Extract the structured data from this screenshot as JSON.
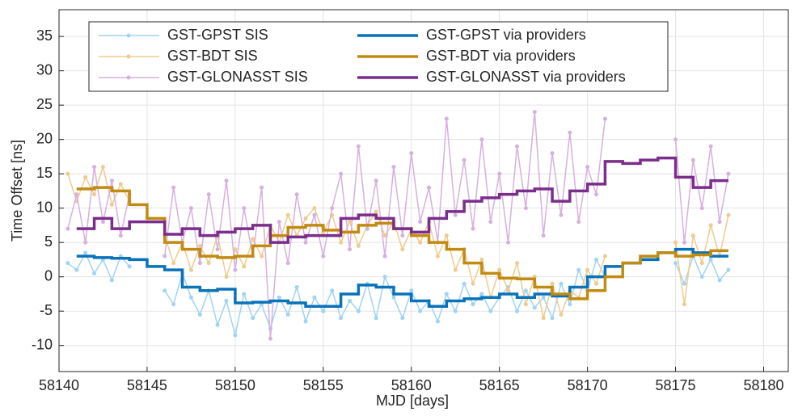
{
  "chart_data": {
    "type": "line",
    "xlabel": "MJD [days]",
    "ylabel": "Time Offset [ns]",
    "xlim": [
      58140,
      58181.4
    ],
    "ylim": [
      -13.8,
      38.9
    ],
    "xticks": [
      58140,
      58145,
      58150,
      58155,
      58160,
      58165,
      58170,
      58175,
      58180
    ],
    "yticks": [
      -10,
      -5,
      0,
      5,
      10,
      15,
      20,
      25,
      30,
      35
    ],
    "grid": true,
    "legend_location": "northwest",
    "legend_columns": 2,
    "x": [
      58140.5,
      58141,
      58141.5,
      58142,
      58142.5,
      58143,
      58143.5,
      58144,
      58144.5,
      58145,
      58145.5,
      58146,
      58146.5,
      58147,
      58147.5,
      58148,
      58148.5,
      58149,
      58149.5,
      58150,
      58150.5,
      58151,
      58151.5,
      58152,
      58152.5,
      58153,
      58153.5,
      58154,
      58154.5,
      58155,
      58155.5,
      58156,
      58156.5,
      58157,
      58157.5,
      58158,
      58158.5,
      58159,
      58159.5,
      58160,
      58160.5,
      58161,
      58161.5,
      58162,
      58162.5,
      58163,
      58163.5,
      58164,
      58164.5,
      58165,
      58165.5,
      58166,
      58166.5,
      58167,
      58167.5,
      58168,
      58168.5,
      58169,
      58169.5,
      58170,
      58170.5,
      58171,
      58171.5,
      58172,
      58172.5,
      58173,
      58173.5,
      58174,
      58174.5,
      58175,
      58175.5,
      58176,
      58176.5,
      58177,
      58177.5,
      58178
    ],
    "series": [
      {
        "name": "GST-GPST SIS",
        "color": "#9fd4f2",
        "style": "line-marker",
        "values": [
          2,
          1,
          3.5,
          0.5,
          2.5,
          -0.5,
          3,
          1.5,
          null,
          null,
          null,
          -2,
          -4,
          0.5,
          -3,
          -5.5,
          -2,
          -7,
          -3.5,
          -8.5,
          -2.5,
          -6,
          -4,
          -7.5,
          -3,
          -5.5,
          -1.5,
          -6.5,
          -3,
          -5,
          -2,
          -6,
          -3.5,
          -5,
          -1,
          -6,
          0,
          -3,
          -6,
          -2,
          -5,
          -3.5,
          -6.5,
          -2.5,
          -5,
          -1,
          -4,
          -2.5,
          -5,
          -3,
          -1.5,
          -5,
          -2,
          -4.5,
          -3,
          -6,
          -1,
          -4,
          1,
          -2,
          2.5,
          0,
          null,
          null,
          null,
          null,
          null,
          null,
          null,
          2,
          -1,
          3,
          0,
          2.5,
          -0.5,
          1
        ]
      },
      {
        "name": "GST-BDT SIS",
        "color": "#efcb8e",
        "style": "line-marker",
        "values": [
          15,
          11,
          14.5,
          12,
          16,
          10.5,
          13.5,
          11,
          null,
          null,
          null,
          6,
          2,
          5,
          1,
          4.5,
          2,
          6,
          0,
          4,
          1.5,
          5.5,
          3,
          7.5,
          5,
          9,
          6,
          8.5,
          10,
          6.5,
          9,
          5,
          8,
          4.5,
          7.5,
          9.5,
          6,
          8,
          4,
          7,
          5,
          8,
          3,
          6,
          1,
          4,
          -1,
          2.5,
          -3,
          1,
          -2,
          2,
          -4,
          0,
          -6,
          -1,
          -5.5,
          -2,
          -3,
          1,
          -1,
          3,
          null,
          null,
          null,
          null,
          null,
          null,
          null,
          5,
          -4,
          6,
          2,
          7.5,
          3,
          9
        ]
      },
      {
        "name": "GST-GLONASST SIS",
        "color": "#d6b0df",
        "style": "line-marker",
        "values": [
          7,
          12,
          5,
          16,
          8,
          14,
          6,
          12,
          null,
          null,
          null,
          3,
          13,
          5,
          10,
          2,
          12,
          4,
          14,
          1,
          10,
          3,
          13,
          -9,
          8,
          2,
          12,
          5,
          9,
          3,
          10,
          15,
          4,
          19,
          7,
          14,
          3,
          16,
          6,
          18,
          8,
          13,
          5,
          23,
          9,
          17,
          7,
          20,
          8,
          15,
          5,
          19,
          10,
          24,
          6,
          18,
          9,
          21,
          8,
          16,
          12,
          23,
          null,
          null,
          null,
          null,
          null,
          null,
          null,
          20,
          5,
          17,
          10,
          19,
          8,
          15
        ]
      },
      {
        "name": "GST-GPST via providers",
        "color": "#0a72ba",
        "style": "steps-post",
        "x": [
          58141,
          58142,
          58143,
          58144,
          58145,
          58146,
          58147,
          58148,
          58149,
          58150,
          58151,
          58152,
          58153,
          58154,
          58155,
          58156,
          58157,
          58158,
          58159,
          58160,
          58161,
          58162,
          58163,
          58164,
          58165,
          58166,
          58167,
          58168,
          58169,
          58170,
          58171,
          58172,
          58173,
          58174,
          58175,
          58176,
          58177,
          58178
        ],
        "values": [
          3,
          2.8,
          2.7,
          2.5,
          1.5,
          1,
          -1.5,
          -2,
          -1.8,
          -3.8,
          -3.7,
          -3.5,
          -3.8,
          -4.3,
          -4.3,
          -2.5,
          -1.2,
          -1.5,
          -2.5,
          -3.5,
          -4.3,
          -3.5,
          -3.2,
          -3,
          -2.5,
          -3,
          -2.5,
          -2.8,
          -1.5,
          0,
          1.5,
          2,
          2.5,
          3.5,
          4,
          3.5,
          3,
          3
        ]
      },
      {
        "name": "GST-BDT via providers",
        "color": "#c18b12",
        "style": "steps-post",
        "x": [
          58141,
          58142,
          58143,
          58144,
          58145,
          58146,
          58147,
          58148,
          58149,
          58150,
          58151,
          58152,
          58153,
          58154,
          58155,
          58156,
          58157,
          58158,
          58159,
          58160,
          58161,
          58162,
          58163,
          58164,
          58165,
          58166,
          58167,
          58168,
          58169,
          58170,
          58171,
          58172,
          58173,
          58174,
          58175,
          58176,
          58177,
          58178
        ],
        "values": [
          12.8,
          13,
          12.5,
          10.5,
          8.5,
          5,
          4,
          3,
          2.8,
          3,
          4.5,
          6,
          7.2,
          7.5,
          6.8,
          6.5,
          7.5,
          7.8,
          7,
          6,
          5,
          4,
          2,
          0.5,
          -0.2,
          -0.3,
          -1.5,
          -2.5,
          -3.2,
          -2,
          0,
          2,
          3,
          3.5,
          3,
          3.2,
          3.8,
          3.8
        ]
      },
      {
        "name": "GST-GLONASST via providers",
        "color": "#7b2d8c",
        "style": "steps-post",
        "x": [
          58141,
          58142,
          58143,
          58144,
          58145,
          58146,
          58147,
          58148,
          58149,
          58150,
          58151,
          58152,
          58153,
          58154,
          58155,
          58156,
          58157,
          58158,
          58159,
          58160,
          58161,
          58162,
          58163,
          58164,
          58165,
          58166,
          58167,
          58168,
          58169,
          58170,
          58171,
          58172,
          58173,
          58174,
          58175,
          58176,
          58177,
          58178
        ],
        "values": [
          7,
          8.5,
          7,
          8,
          8,
          6.2,
          7,
          6,
          6.5,
          7,
          7.5,
          5,
          5.8,
          6,
          6,
          8.5,
          9,
          8.5,
          7,
          6.5,
          8.5,
          9.5,
          11,
          11.5,
          12,
          12.5,
          12.8,
          11,
          12.5,
          13.5,
          16.8,
          16.5,
          17,
          17.3,
          14.5,
          13,
          14,
          14
        ]
      }
    ]
  }
}
